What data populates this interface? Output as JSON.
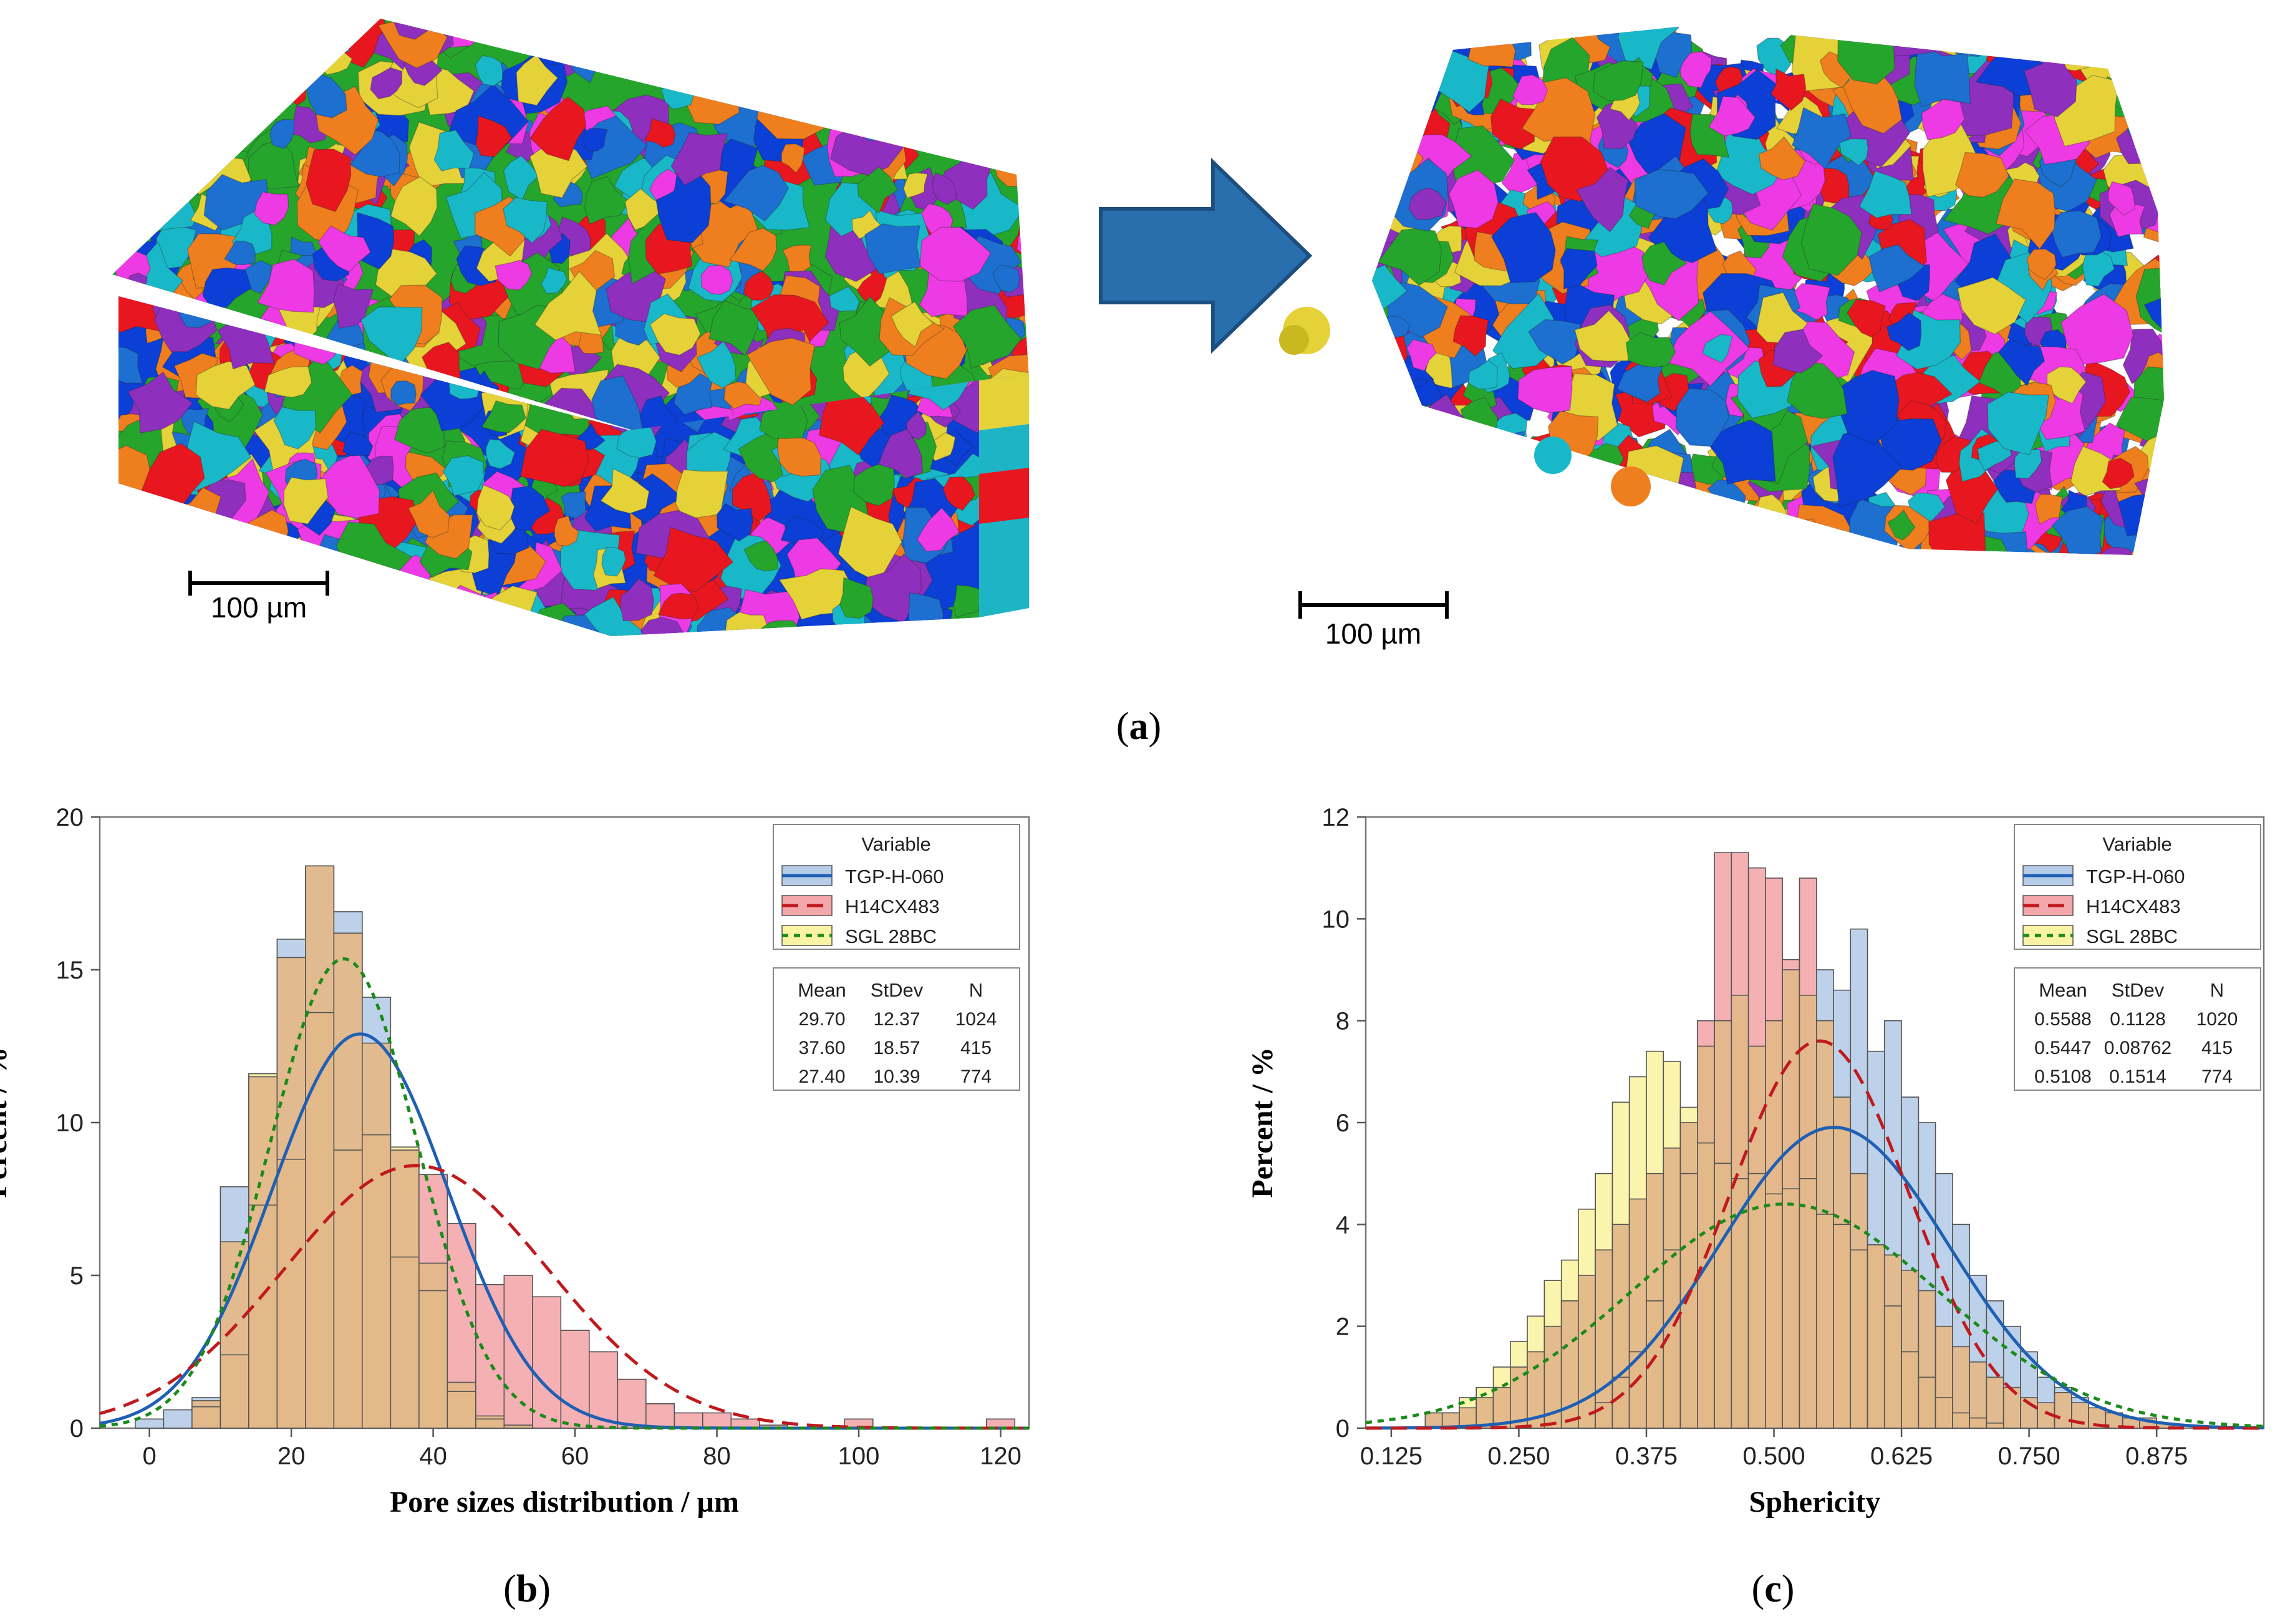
{
  "figure": {
    "panel_a_label": "a",
    "panel_b_label": "b",
    "panel_c_label": "c",
    "scalebar_left": "100 µm",
    "scalebar_right": "100 µm"
  },
  "colors": {
    "tgp": "#1f5fb4",
    "h14": "#c0191e",
    "sgl": "#1a8a1a",
    "tgp_fill": "#b6cde8",
    "h14_fill": "#f4a7ab",
    "sgl_fill": "#fbf3a4",
    "overlap": "#e3b88a",
    "arrow": "#2a6fad",
    "grain_palette": [
      "#e8171f",
      "#0b3fd6",
      "#19b8c8",
      "#26a52d",
      "#ee3ae4",
      "#ef7f1e",
      "#e4d238",
      "#8e2fbe",
      "#1d6fd0"
    ]
  },
  "chart_data": [
    {
      "type": "histogram",
      "panel": "b",
      "title": "",
      "xlabel": "Pore sizes distribution / µm",
      "ylabel": "Percent / %",
      "xlim": [
        -7,
        124
      ],
      "ylim": [
        0,
        20
      ],
      "x_ticks": [
        0,
        20,
        40,
        60,
        80,
        100,
        120
      ],
      "y_ticks": [
        0,
        5,
        10,
        15,
        20
      ],
      "bin_edges": [
        -2,
        2,
        6,
        10,
        14,
        18,
        22,
        26,
        30,
        34,
        38,
        42,
        46,
        50,
        54,
        58,
        62,
        66,
        70,
        74,
        78,
        82,
        86,
        90,
        94,
        98,
        102,
        106,
        110,
        114,
        118,
        122
      ],
      "series": [
        {
          "name": "TGP-H-060",
          "style": "solid",
          "mean": 29.7,
          "stdev": 12.37,
          "n": 1024,
          "values": [
            0.3,
            0.6,
            1.0,
            7.9,
            11.5,
            16.0,
            18.4,
            16.9,
            14.1,
            9.1,
            5.4,
            1.5,
            0.4,
            0.1,
            0,
            0,
            0,
            0,
            0,
            0,
            0,
            0,
            0,
            0,
            0,
            0,
            0,
            0,
            0,
            0,
            0
          ]
        },
        {
          "name": "H14CX483",
          "style": "dashed",
          "mean": 37.6,
          "stdev": 18.57,
          "n": 415,
          "values": [
            0,
            0,
            0.7,
            2.4,
            7.3,
            8.8,
            13.6,
            9.1,
            9.6,
            5.6,
            8.3,
            6.7,
            4.7,
            5.0,
            4.3,
            3.2,
            2.5,
            1.6,
            0.8,
            0.5,
            0.5,
            0.3,
            0.1,
            0,
            0,
            0.3,
            0,
            0,
            0,
            0,
            0.3
          ]
        },
        {
          "name": "SGL 28BC",
          "style": "dotted",
          "mean": 27.4,
          "stdev": 10.39,
          "n": 774,
          "values": [
            0,
            0,
            0.9,
            6.1,
            11.6,
            15.4,
            18.4,
            16.2,
            12.6,
            9.2,
            4.5,
            1.2,
            0.3,
            0,
            0,
            0,
            0,
            0,
            0,
            0,
            0,
            0,
            0,
            0,
            0,
            0,
            0,
            0,
            0,
            0,
            0
          ]
        }
      ],
      "legend": {
        "title": "Variable",
        "stats_headers": [
          "Mean",
          "StDev",
          "N"
        ],
        "rows": [
          [
            "29.70",
            "12.37",
            "1024"
          ],
          [
            "37.60",
            "18.57",
            "415"
          ],
          [
            "27.40",
            "10.39",
            "774"
          ]
        ]
      }
    },
    {
      "type": "histogram",
      "panel": "c",
      "title": "",
      "xlabel": "Sphericity",
      "ylabel": "Percent / %",
      "xlim": [
        0.1,
        0.98
      ],
      "ylim": [
        0,
        12
      ],
      "x_ticks": [
        0.125,
        0.25,
        0.375,
        0.5,
        0.625,
        0.75,
        0.875
      ],
      "x_tick_labels": [
        "0.125",
        "0.250",
        "0.375",
        "0.500",
        "0.625",
        "0.750",
        "0.875"
      ],
      "y_ticks": [
        0,
        2,
        4,
        6,
        8,
        10,
        12
      ],
      "bin_edges": [
        0.125,
        0.1417,
        0.1583,
        0.175,
        0.1917,
        0.2083,
        0.225,
        0.2417,
        0.2583,
        0.275,
        0.2917,
        0.3083,
        0.325,
        0.3417,
        0.3583,
        0.375,
        0.3917,
        0.4083,
        0.425,
        0.4417,
        0.4583,
        0.475,
        0.4917,
        0.5083,
        0.525,
        0.5417,
        0.5583,
        0.575,
        0.5917,
        0.6083,
        0.625,
        0.6417,
        0.6583,
        0.675,
        0.6917,
        0.7083,
        0.725,
        0.7417,
        0.7583,
        0.775,
        0.7917,
        0.8083,
        0.825,
        0.8417,
        0.8583,
        0.875,
        0.8917,
        0.9083,
        0.925,
        0.9417,
        0.9583
      ],
      "series": [
        {
          "name": "TGP-H-060",
          "style": "solid",
          "mean": 0.5588,
          "stdev": 0.1128,
          "n": 1020,
          "values": [
            0,
            0,
            0.3,
            0.3,
            0.4,
            0.6,
            0.8,
            1.2,
            1.5,
            2.0,
            2.5,
            3.0,
            3.5,
            4.0,
            4.5,
            5.0,
            5.5,
            6.0,
            7.5,
            8.0,
            8.5,
            7.5,
            8.0,
            9.0,
            8.5,
            9.0,
            8.6,
            9.8,
            7.4,
            8.0,
            6.5,
            6.0,
            5.0,
            4.0,
            3.0,
            2.5,
            2.0,
            1.5,
            1.0,
            0.8,
            0.6,
            0.4,
            0.3,
            0.2,
            0.2,
            0.1,
            0,
            0,
            0,
            0
          ]
        },
        {
          "name": "H14CX483",
          "style": "dashed",
          "mean": 0.5447,
          "stdev": 0.08762,
          "n": 415,
          "values": [
            0,
            0,
            0,
            0,
            0,
            0,
            0,
            0,
            0,
            0,
            0,
            0,
            0.5,
            1.0,
            1.5,
            2.5,
            3.5,
            5.0,
            8.0,
            11.3,
            11.3,
            11.0,
            10.8,
            9.2,
            10.8,
            8.0,
            6.5,
            5.0,
            3.6,
            2.4,
            1.5,
            1.0,
            0.6,
            0.3,
            0.2,
            0.1,
            0,
            0,
            0,
            0,
            0,
            0,
            0,
            0,
            0,
            0,
            0,
            0,
            0,
            0
          ]
        },
        {
          "name": "SGL 28BC",
          "style": "dotted",
          "mean": 0.5108,
          "stdev": 0.1514,
          "n": 774,
          "values": [
            0,
            0,
            0.3,
            0.3,
            0.6,
            0.8,
            1.2,
            1.7,
            2.2,
            2.9,
            3.3,
            4.3,
            5.0,
            6.4,
            6.9,
            7.4,
            7.2,
            6.3,
            5.6,
            5.2,
            4.9,
            5.0,
            4.6,
            4.7,
            4.9,
            4.2,
            4.0,
            3.5,
            3.6,
            3.4,
            3.1,
            2.7,
            2.0,
            1.6,
            1.3,
            1.0,
            0.8,
            0.6,
            0.5,
            0.7,
            0.5,
            0.4,
            0.3,
            0.2,
            0.2,
            0.1,
            0,
            0,
            0,
            0
          ]
        }
      ],
      "legend": {
        "title": "Variable",
        "stats_headers": [
          "Mean",
          "StDev",
          "N"
        ],
        "rows": [
          [
            "0.5588",
            "0.1128",
            "1020"
          ],
          [
            "0.5447",
            "0.08762",
            "415"
          ],
          [
            "0.5108",
            "0.1514",
            "774"
          ]
        ]
      }
    }
  ]
}
